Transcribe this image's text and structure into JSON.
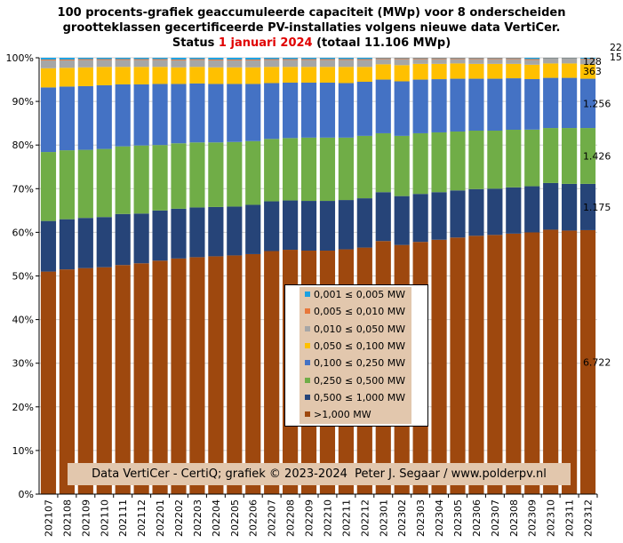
{
  "title": {
    "line1": "100 procents-grafiek geaccumuleerde capaciteit (MWp) voor 8 onderscheiden",
    "line2": "grootteklassen gecertificeerde PV-installaties volgens nieuwe data VertiCer.",
    "line3_prefix": "Status ",
    "line3_date": "1 januari 2024",
    "line3_total": " (totaal 11.106 MWp)"
  },
  "credit": "Data VertiCer - CertiQ; grafiek © 2023-2024  Peter J. Segaar / www.polderpv.nl",
  "colors": {
    "c1": "#1ba1e2",
    "c2": "#e8773a",
    "c3": "#a6a6a6",
    "c4": "#ffc000",
    "c5": "#4472c4",
    "c6": "#70ad47",
    "c7": "#264478",
    "c8": "#9e480e",
    "accent": "#e00000"
  },
  "chart_data": {
    "type": "bar",
    "stacked": "percent",
    "ylim": [
      0,
      100
    ],
    "yticks": [
      "0%",
      "10%",
      "20%",
      "30%",
      "40%",
      "50%",
      "60%",
      "70%",
      "80%",
      "90%",
      "100%"
    ],
    "categories": [
      "202107",
      "202108",
      "202109",
      "202110",
      "202111",
      "202112",
      "202201",
      "202202",
      "202203",
      "202204",
      "202205",
      "202206",
      "202207",
      "202208",
      "202209",
      "202210",
      "202211",
      "202212",
      "202301",
      "202302",
      "202303",
      "202304",
      "202305",
      "202306",
      "202307",
      "202308",
      "202309",
      "202310",
      "202311",
      "202312"
    ],
    "legend_placement": "center",
    "series": [
      {
        "name": ">1,000 MW",
        "color_key": "c8",
        "values": [
          51.0,
          51.5,
          51.8,
          52.0,
          52.5,
          52.9,
          53.5,
          54.0,
          54.3,
          54.5,
          54.7,
          55.0,
          55.7,
          56.0,
          55.8,
          55.8,
          56.1,
          56.5,
          58.0,
          57.1,
          57.8,
          58.3,
          58.8,
          59.2,
          59.4,
          59.7,
          60.1,
          60.6,
          60.4,
          60.5
        ],
        "end_label": "6.722"
      },
      {
        "name": "0,500 ≤  1,000 MW",
        "color_key": "c7",
        "values": [
          11.6,
          11.5,
          11.5,
          11.5,
          11.7,
          11.4,
          11.5,
          11.4,
          11.4,
          11.3,
          11.2,
          11.3,
          11.4,
          11.3,
          11.4,
          11.4,
          11.3,
          11.3,
          11.2,
          11.2,
          11.0,
          10.9,
          10.8,
          10.7,
          10.6,
          10.6,
          10.6,
          10.7,
          10.7,
          10.6
        ],
        "end_label": "1.175"
      },
      {
        "name": "0,250 ≤  0,500 MW",
        "color_key": "c6",
        "values": [
          15.8,
          15.8,
          15.6,
          15.6,
          15.5,
          15.6,
          15.0,
          15.0,
          14.9,
          14.8,
          14.8,
          14.6,
          14.3,
          14.3,
          14.5,
          14.5,
          14.3,
          14.3,
          13.5,
          13.8,
          13.9,
          13.7,
          13.5,
          13.4,
          13.3,
          13.2,
          13.0,
          12.6,
          12.8,
          12.8
        ],
        "end_label": "1.426"
      },
      {
        "name": "0,100 ≤  0,250 MW",
        "color_key": "c5",
        "values": [
          14.8,
          14.6,
          14.6,
          14.6,
          14.2,
          14.0,
          14.0,
          13.6,
          13.5,
          13.4,
          13.3,
          13.1,
          12.8,
          12.7,
          12.6,
          12.6,
          12.5,
          12.4,
          12.3,
          12.5,
          12.3,
          12.2,
          12.1,
          11.9,
          11.9,
          11.8,
          11.6,
          11.5,
          11.5,
          11.3
        ],
        "end_label": "1.256"
      },
      {
        "name": "0,050 ≤  0,100 MW",
        "color_key": "c4",
        "values": [
          4.4,
          4.3,
          4.3,
          4.2,
          4.0,
          4.0,
          3.9,
          3.8,
          3.8,
          3.8,
          3.8,
          3.8,
          3.7,
          3.6,
          3.6,
          3.6,
          3.7,
          3.4,
          3.5,
          3.7,
          3.6,
          3.5,
          3.5,
          3.4,
          3.4,
          3.3,
          3.3,
          3.3,
          3.3,
          3.3
        ],
        "end_label": "363"
      },
      {
        "name": "0,010 ≤  0,050 MW",
        "color_key": "c3",
        "values": [
          1.8,
          1.7,
          1.7,
          1.6,
          1.6,
          1.6,
          1.6,
          1.6,
          1.6,
          1.6,
          1.6,
          1.6,
          1.6,
          1.6,
          1.6,
          1.6,
          1.6,
          1.6,
          1.2,
          1.4,
          1.1,
          1.1,
          1.0,
          1.1,
          1.1,
          1.1,
          1.1,
          1.1,
          1.1,
          1.2
        ],
        "end_label": "128"
      },
      {
        "name": "0,005 ≤  0,010 MW",
        "color_key": "c2",
        "values": [
          0.2,
          0.2,
          0.2,
          0.2,
          0.2,
          0.2,
          0.2,
          0.2,
          0.2,
          0.2,
          0.2,
          0.2,
          0.2,
          0.2,
          0.2,
          0.2,
          0.2,
          0.2,
          0.2,
          0.2,
          0.2,
          0.2,
          0.2,
          0.2,
          0.2,
          0.2,
          0.2,
          0.1,
          0.1,
          0.1
        ],
        "end_label": "15"
      },
      {
        "name": "0,001 ≤  0,005 MW",
        "color_key": "c1",
        "values": [
          0.4,
          0.4,
          0.3,
          0.3,
          0.3,
          0.3,
          0.3,
          0.4,
          0.3,
          0.4,
          0.4,
          0.4,
          0.3,
          0.3,
          0.3,
          0.3,
          0.3,
          0.3,
          0.1,
          0.1,
          0.1,
          0.1,
          0.1,
          0.1,
          0.1,
          0.1,
          0.3,
          0.1,
          0.1,
          0.2
        ],
        "end_label": "22"
      }
    ]
  }
}
